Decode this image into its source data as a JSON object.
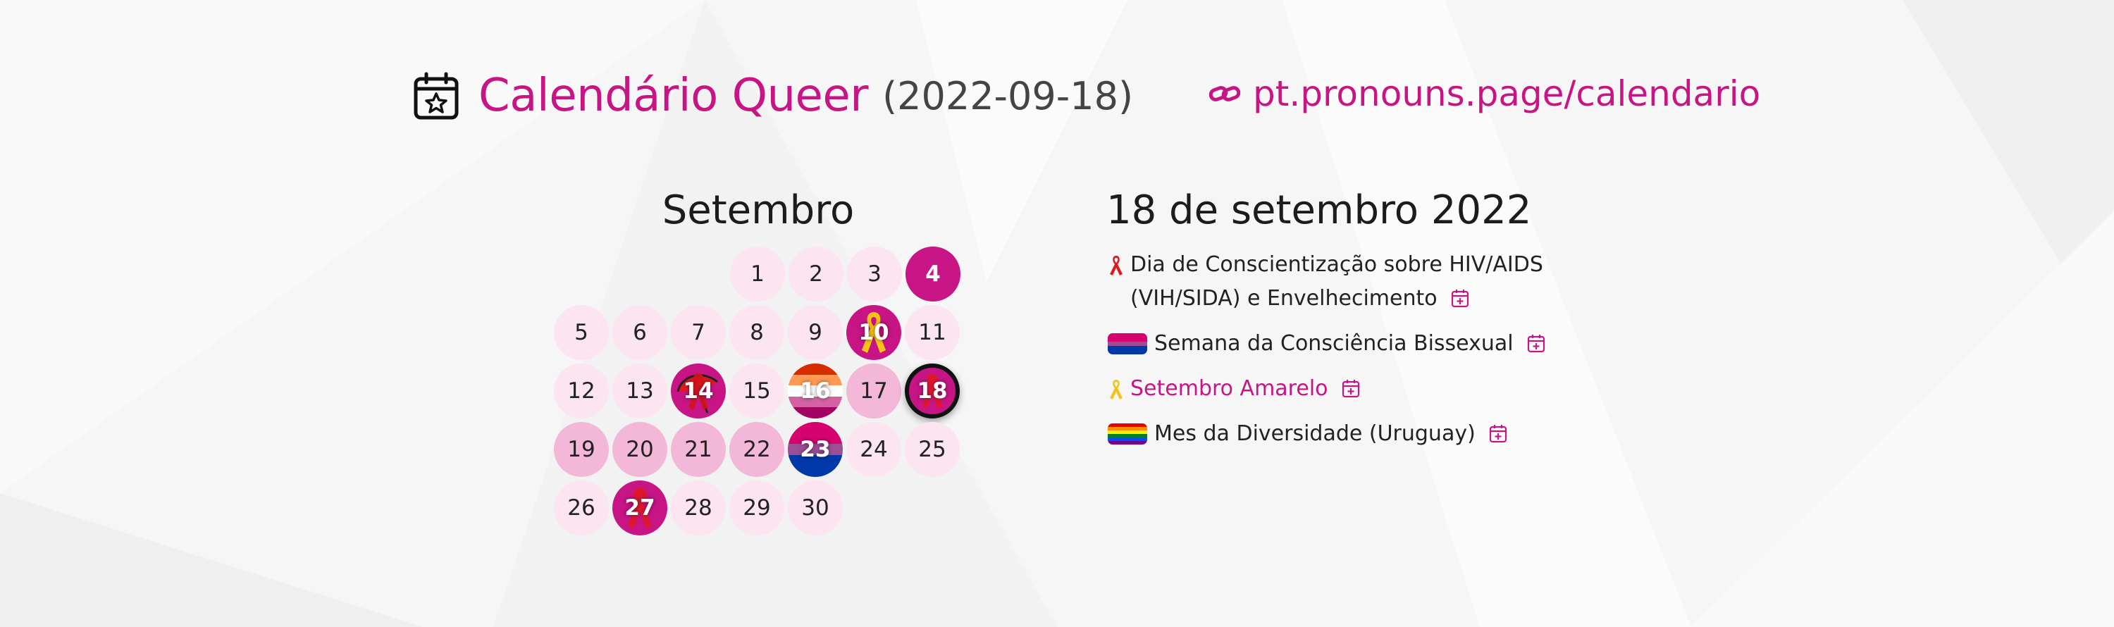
{
  "header": {
    "title": "Calendário Queer",
    "date": "(2022-09-18)",
    "site_url": "pt.pronouns.page/calendario",
    "calendar_icon": "calendar-star-icon",
    "link_icon": "pronouns-page-link-icon"
  },
  "calendar": {
    "month": "Setembro",
    "days": [
      {
        "label": "1",
        "style": "light"
      },
      {
        "label": "2",
        "style": "light"
      },
      {
        "label": "3",
        "style": "light"
      },
      {
        "label": "4",
        "style": "strong"
      },
      {
        "label": "5",
        "style": "light"
      },
      {
        "label": "6",
        "style": "light"
      },
      {
        "label": "7",
        "style": "light"
      },
      {
        "label": "8",
        "style": "light"
      },
      {
        "label": "9",
        "style": "light"
      },
      {
        "label": "10",
        "style": "strong",
        "decoration": "yellow-ribbon"
      },
      {
        "label": "11",
        "style": "light"
      },
      {
        "label": "12",
        "style": "light"
      },
      {
        "label": "13",
        "style": "light"
      },
      {
        "label": "14",
        "style": "strong",
        "decoration": "red-ribbon-umbrella"
      },
      {
        "label": "15",
        "style": "light"
      },
      {
        "label": "16",
        "style": "flag",
        "decoration": "lesbian-flag"
      },
      {
        "label": "17",
        "style": "mid"
      },
      {
        "label": "18",
        "style": "selected",
        "decoration": "red-ribbon"
      },
      {
        "label": "19",
        "style": "mid"
      },
      {
        "label": "20",
        "style": "mid"
      },
      {
        "label": "21",
        "style": "mid"
      },
      {
        "label": "22",
        "style": "mid"
      },
      {
        "label": "23",
        "style": "flag",
        "decoration": "bisexual-flag"
      },
      {
        "label": "24",
        "style": "light"
      },
      {
        "label": "25",
        "style": "light"
      },
      {
        "label": "26",
        "style": "light"
      },
      {
        "label": "27",
        "style": "strong",
        "decoration": "red-ribbon"
      },
      {
        "label": "28",
        "style": "light"
      },
      {
        "label": "29",
        "style": "light"
      },
      {
        "label": "30",
        "style": "light"
      }
    ]
  },
  "events_panel": {
    "title": "18 de setembro 2022",
    "events": [
      {
        "icon": "red-ribbon-icon",
        "text": "Dia de Conscientização sobre HIV/AIDS (VIH/SIDA) e Envelhecimento"
      },
      {
        "icon": "bisexual-flag-icon",
        "text": "Semana da Consciência Bissexual"
      },
      {
        "icon": "yellow-ribbon-icon",
        "text": "Setembro Amarelo"
      },
      {
        "icon": "rainbow-flag-icon",
        "text": "Mes da Diversidade (Uruguay)"
      }
    ]
  },
  "colors": {
    "accent": "#c71585",
    "day_light": "#fce4f0",
    "day_mid": "#f3b7d7",
    "background": "#f6f6f6"
  }
}
